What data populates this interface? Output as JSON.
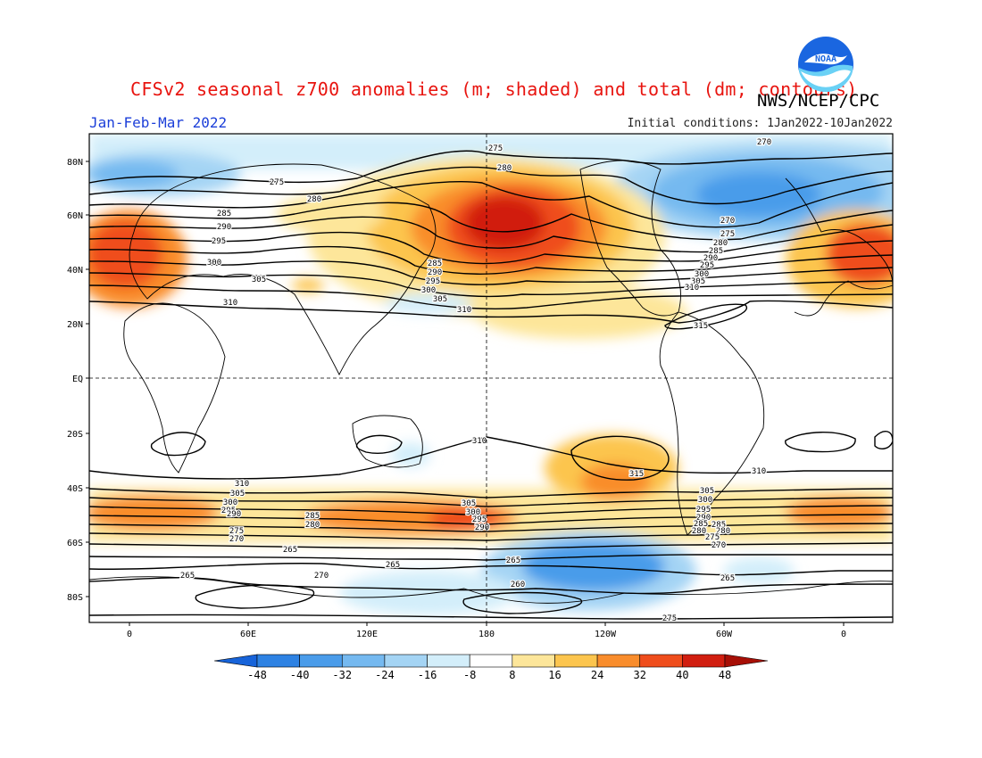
{
  "title": "CFSv2 seasonal z700 anomalies (m; shaded) and total (dm; contours)",
  "agency": "NWS/NCEP/CPC",
  "logo_text": "NOAA",
  "period": "Jan-Feb-Mar 2022",
  "initial_conditions": "Initial conditions: 1Jan2022-10Jan2022",
  "lat_labels": [
    "80N",
    "60N",
    "40N",
    "20N",
    "EQ",
    "20S",
    "40S",
    "60S",
    "80S"
  ],
  "lon_labels": [
    "0",
    "60E",
    "120E",
    "180",
    "120W",
    "60W",
    "0"
  ],
  "colorbar": {
    "labels": [
      "-48",
      "-40",
      "-32",
      "-24",
      "-16",
      "-8",
      "8",
      "16",
      "24",
      "32",
      "40",
      "48"
    ],
    "colors": [
      "#1763d9",
      "#2e82e3",
      "#4a9cea",
      "#75b9f0",
      "#a4d4f4",
      "#d3eefa",
      "#ffffff",
      "#fde69a",
      "#fcc54e",
      "#f98d2c",
      "#ef4d1c",
      "#d11e10",
      "#a70f06"
    ]
  },
  "contour_labels": [
    "275",
    "280",
    "270",
    "275",
    "280",
    "285",
    "290",
    "295",
    "300",
    "305",
    "310",
    "285",
    "290",
    "295",
    "300",
    "305",
    "310",
    "270",
    "275",
    "280",
    "285",
    "290",
    "295",
    "300",
    "305",
    "310",
    "315",
    "310",
    "315",
    "310",
    "310",
    "305",
    "300",
    "295",
    "290",
    "285",
    "280",
    "275",
    "270",
    "265",
    "265",
    "260",
    "265",
    "265",
    "270",
    "265",
    "305",
    "300",
    "295",
    "290",
    "285",
    "280",
    "275",
    "270",
    "310",
    "305",
    "300",
    "295",
    "290",
    "285",
    "280",
    "275"
  ]
}
